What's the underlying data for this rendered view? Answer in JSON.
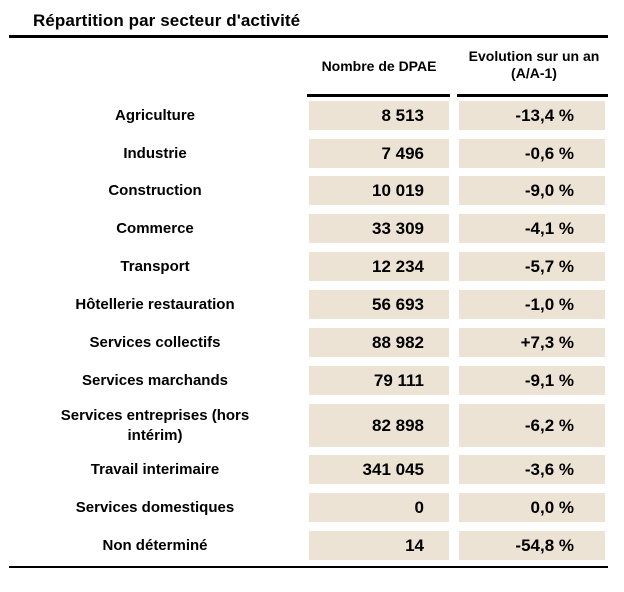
{
  "title": "Répartition par secteur d'activité",
  "headers": {
    "count": "Nombre de DPAE",
    "evolution": "Evolution sur un an (A/A-1)"
  },
  "rows": [
    {
      "sector": "Agriculture",
      "count": "8 513",
      "evolution": "-13,4 %"
    },
    {
      "sector": "Industrie",
      "count": "7 496",
      "evolution": "-0,6 %"
    },
    {
      "sector": "Construction",
      "count": "10 019",
      "evolution": "-9,0 %"
    },
    {
      "sector": "Commerce",
      "count": "33 309",
      "evolution": "-4,1 %"
    },
    {
      "sector": "Transport",
      "count": "12 234",
      "evolution": "-5,7 %"
    },
    {
      "sector": "Hôtellerie restauration",
      "count": "56 693",
      "evolution": "-1,0 %"
    },
    {
      "sector": "Services collectifs",
      "count": "88 982",
      "evolution": "+7,3 %"
    },
    {
      "sector": "Services marchands",
      "count": "79 111",
      "evolution": "-9,1 %"
    },
    {
      "sector": "Services entreprises (hors intérim)",
      "count": "82 898",
      "evolution": "-6,2 %"
    },
    {
      "sector": "Travail interimaire",
      "count": "341 045",
      "evolution": "-3,6 %"
    },
    {
      "sector": "Services domestiques",
      "count": "0",
      "evolution": "0,0 %"
    },
    {
      "sector": "Non déterminé",
      "count": "14",
      "evolution": "-54,8 %"
    }
  ]
}
